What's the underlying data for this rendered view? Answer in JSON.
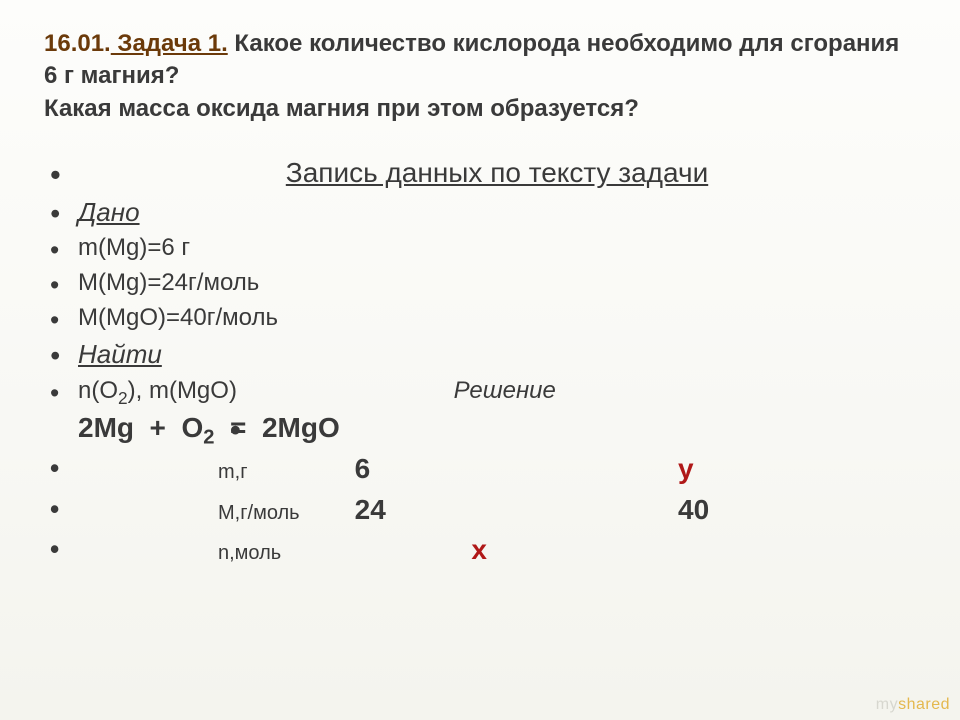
{
  "title": {
    "date": "16.01.",
    "problem_label": " Задача 1.",
    "rest": " Какое количество кислорода необходимо для сгорания 6 г магния?\nКакая масса оксида магния при этом образуется?"
  },
  "subtitle": "Запись данных по тексту задачи",
  "given_label": "Дано",
  "given": [
    "m(Mg)=6 г",
    "M(Mg)=24г/моль",
    "M(MgO)=40г/моль"
  ],
  "find_label": "Найти",
  "find_items": "n(O",
  "find_items_sub": "2",
  "find_items_tail": "), m(MgO)",
  "solution_label": "Решение",
  "equation": {
    "lhs1": "2Mg",
    "plus": "  +  ",
    "lhs2_base": "O",
    "lhs2_sub": "2",
    "eq": "  =  ",
    "rhs": "2MgO"
  },
  "rows": [
    {
      "label": "m,г",
      "c1": "6",
      "c2": "",
      "c3": "у",
      "c1_red": false,
      "c3_red": true
    },
    {
      "label": "M,г/моль",
      "c1": "24",
      "c2": "",
      "c3": "40",
      "c1_red": false,
      "c3_red": false
    },
    {
      "label": "n,моль",
      "c1": "",
      "c2": "х",
      "c3": "",
      "c2_red": true
    }
  ],
  "watermark": {
    "my": "my",
    "shared": "shared"
  },
  "colors": {
    "accent_brown": "#6b3a0a",
    "text": "#3a3a3a",
    "red": "#b01818",
    "bg_top": "#fdfdfb",
    "bg_bottom": "#f4f4ee",
    "watermark_gray": "#d7d7cf",
    "watermark_gold": "#e4b84e"
  }
}
